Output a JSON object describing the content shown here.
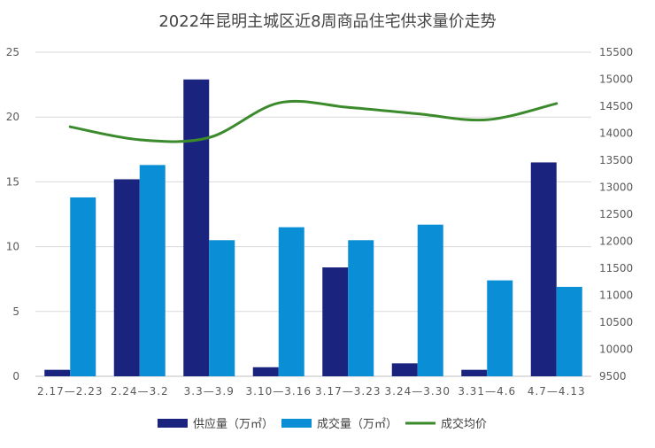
{
  "chart_data": {
    "type": "bar",
    "title": "2022年昆明主城区近8周商品住宅供求量价走势",
    "categories": [
      "2.17—2.23",
      "2.24—3.2",
      "3.3—3.9",
      "3.10—3.16",
      "3.17—3.23",
      "3.24—3.30",
      "3.31—4.6",
      "4.7—4.13"
    ],
    "series": [
      {
        "name": "供应量（万㎡）",
        "type": "bar",
        "axis": "left",
        "color": "#1a237e",
        "values": [
          0.5,
          15.2,
          22.9,
          0.7,
          8.4,
          1.0,
          0.5,
          16.5
        ]
      },
      {
        "name": "成交量（万㎡）",
        "type": "bar",
        "axis": "left",
        "color": "#0a8fd6",
        "values": [
          13.8,
          16.3,
          10.5,
          11.5,
          10.5,
          11.7,
          7.4,
          6.9
        ]
      },
      {
        "name": "成交均价",
        "type": "line",
        "axis": "right",
        "color": "#3b8a2c",
        "values": [
          14120,
          13880,
          13920,
          14560,
          14480,
          14360,
          14250,
          14550
        ]
      }
    ],
    "yleft": {
      "min": 0,
      "max": 25,
      "ticks": [
        "0",
        "5",
        "10",
        "15",
        "20",
        "25"
      ]
    },
    "yright": {
      "min": 9500,
      "max": 15500,
      "ticks": [
        "9500",
        "10000",
        "10500",
        "11000",
        "11500",
        "12000",
        "12500",
        "13000",
        "13500",
        "14000",
        "14500",
        "15000",
        "15500"
      ]
    },
    "grid": true,
    "legend_position": "bottom"
  }
}
